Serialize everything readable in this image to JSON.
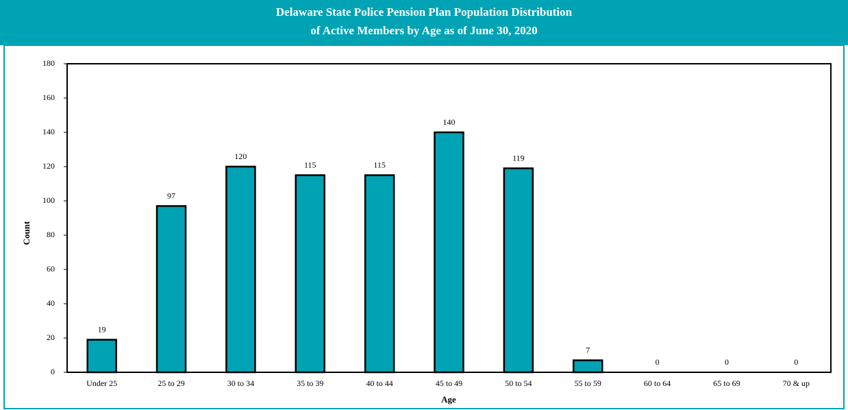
{
  "chart_data": {
    "type": "bar",
    "title": [
      "Delaware State Police Pension Plan Population Distribution",
      "of Active Members by Age as of June 30, 2020"
    ],
    "xlabel": "Age",
    "ylabel": "Count",
    "categories": [
      "Under 25",
      "25 to 29",
      "30 to 34",
      "35 to 39",
      "40 to 44",
      "45 to 49",
      "50 to 54",
      "55 to 59",
      "60 to 64",
      "65 to 69",
      "70 & up"
    ],
    "values": [
      19,
      97,
      120,
      115,
      115,
      140,
      119,
      7,
      0,
      0,
      0
    ],
    "color": "#00a3b4",
    "ylim": [
      0,
      180
    ],
    "yticks": [
      0,
      20,
      40,
      60,
      80,
      100,
      120,
      140,
      160,
      180
    ],
    "grid": false
  }
}
